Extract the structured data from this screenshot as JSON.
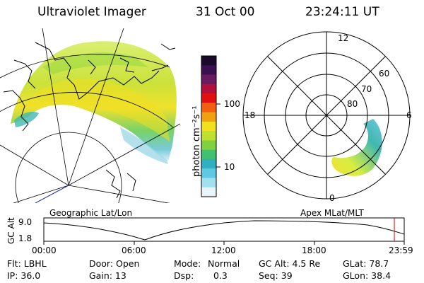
{
  "header": {
    "instrument": "Ultraviolet Imager",
    "date": "31 Oct 00",
    "time": "23:24:11 UT"
  },
  "colorbar": {
    "unit_label": "photon cm⁻²s⁻¹",
    "ticks": [
      "100",
      "10"
    ],
    "colors": [
      "#1a0a2a",
      "#3a1050",
      "#6a1a60",
      "#b0103a",
      "#e01010",
      "#f06010",
      "#f0a010",
      "#f0e020",
      "#c0e030",
      "#80d040",
      "#40c070",
      "#30b0c0",
      "#60c8e0",
      "#a0e0f0",
      "#e8f4f8"
    ]
  },
  "polar_plot": {
    "mlt_labels": [
      "12",
      "18",
      "6",
      "0"
    ],
    "lat_labels": [
      "60",
      "70",
      "80"
    ]
  },
  "projection_labels": {
    "left": "Geographic Lat/Lon",
    "right": "Apex  MLat/MLT"
  },
  "altitude_strip": {
    "axis_label": "GC Alt",
    "ymax": "9.0",
    "ymin": "1.8",
    "time_ticks": [
      "00:00",
      "06:00",
      "12:00",
      "18:00",
      "23:59"
    ],
    "series_color": "#000000",
    "marker_color": "#cc0000"
  },
  "info": {
    "filter": "Flt: LBHL",
    "ip": "IP: 36.0",
    "door": "Door: Open",
    "gain": "Gain: 13",
    "mode_label": "Mode:",
    "mode_value": "Normal",
    "dsp_label": "Dsp:",
    "dsp_value": "0.3",
    "gc_alt": "GC Alt: 4.5 Re",
    "seq": "Seq: 39",
    "glat": "GLat: 78.7",
    "glon": "GLon: 38.4"
  }
}
